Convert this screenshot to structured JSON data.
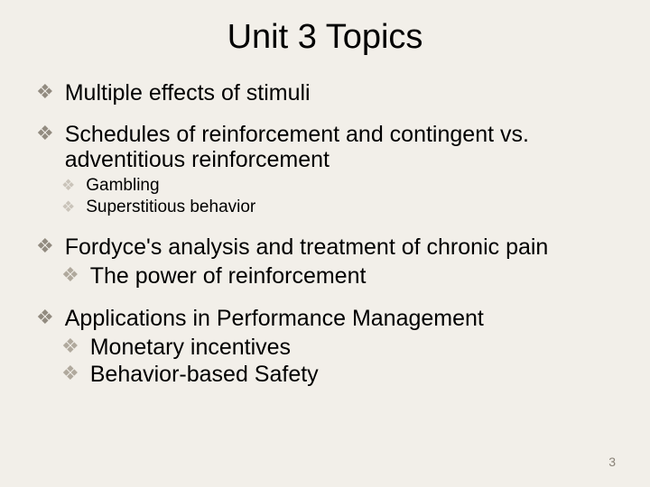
{
  "title": "Unit 3 Topics",
  "items": [
    {
      "text": "Multiple effects of stimuli"
    },
    {
      "text": "Schedules of reinforcement and contingent vs. adventitious reinforcement",
      "sub_small": [
        "Gambling",
        "Superstitious behavior"
      ]
    },
    {
      "text": "Fordyce's analysis and treatment of chronic pain",
      "sub_big": [
        "The power of reinforcement"
      ]
    },
    {
      "text": "Applications in Performance Management",
      "sub_big": [
        "Monetary incentives",
        "Behavior-based Safety"
      ]
    }
  ],
  "page_number": "3",
  "colors": {
    "background": "#f2efe9",
    "text": "#000000",
    "bullet_l1": "#928b80",
    "bullet_small": "#cac4ba",
    "bullet_mid": "#b0a99d",
    "pagenum": "#8a8378"
  },
  "fonts": {
    "title_size_pt": 38,
    "l1_size_pt": 25,
    "l2_small_size_pt": 19,
    "l2_big_size_pt": 25
  }
}
